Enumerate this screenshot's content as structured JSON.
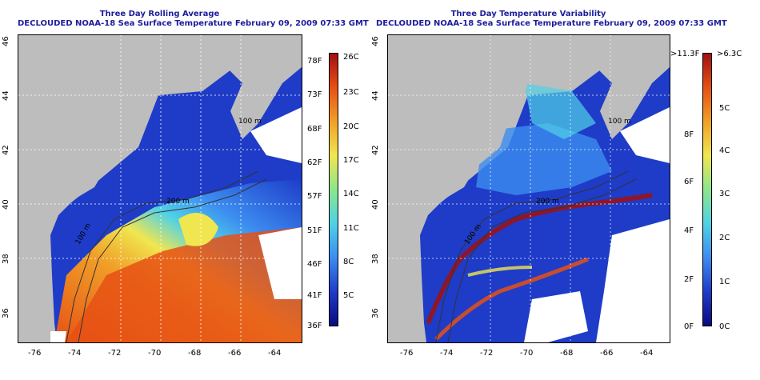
{
  "left_panel": {
    "title_line1": "Three Day Rolling Average",
    "title_line2": "DECLOUDED NOAA-18 Sea Surface Temperature February 09, 2009 07:33 GMT",
    "colorbar_f": [
      "78F",
      "73F",
      "68F",
      "62F",
      "57F",
      "51F",
      "46F",
      "41F",
      "36F"
    ],
    "colorbar_c": [
      "26C",
      "23C",
      "20C",
      "17C",
      "14C",
      "11C",
      "8C",
      "5C"
    ]
  },
  "right_panel": {
    "title_line1": "Three Day Temperature Variability",
    "title_line2": "DECLOUDED NOAA-18 Sea Surface Temperature February 09, 2009 07:33 GMT",
    "colorbar_f": [
      ">11.3F",
      "8F",
      "6F",
      "4F",
      "2F",
      "0F"
    ],
    "colorbar_c": [
      ">6.3C",
      "5C",
      "4C",
      "3C",
      "2C",
      "1C",
      "0C"
    ]
  },
  "lat_ticks": [
    "46",
    "44",
    "42",
    "40",
    "38",
    "36"
  ],
  "lon_ticks": [
    "-76",
    "-74",
    "-72",
    "-70",
    "-68",
    "-66",
    "-64"
  ],
  "contour_labels": [
    "100 m",
    "200 m",
    "100 m",
    "100 m",
    "200 m",
    "100 m"
  ],
  "colors": {
    "land": "#bdbdbd",
    "title": "#1c1c9c",
    "sst_scale": [
      "#0a0a80",
      "#1e3cc8",
      "#3c8cf0",
      "#50d2e6",
      "#8ce68c",
      "#f0e650",
      "#f0a028",
      "#e65014",
      "#a01010"
    ],
    "var_scale": [
      "#0a0a80",
      "#1e3cc8",
      "#3c8cf0",
      "#50d2e6",
      "#8ce68c",
      "#f0e650",
      "#f0a028",
      "#e65014",
      "#a01010"
    ]
  }
}
